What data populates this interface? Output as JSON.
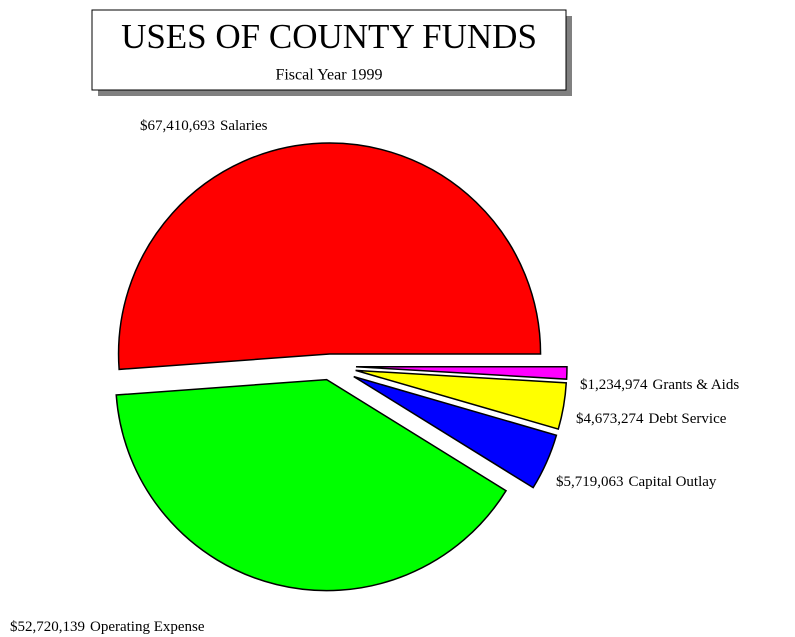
{
  "chart_data": {
    "type": "pie",
    "title": "USES OF COUNTY FUNDS",
    "subtitle": "Fiscal Year 1999",
    "categories": [
      "Salaries",
      "Operating Expense",
      "Capital Outlay",
      "Debt Service",
      "Grants & Aids"
    ],
    "values": [
      67410693,
      52720139,
      5719063,
      4673274,
      1234974
    ],
    "value_labels": [
      "$67,410,693",
      "$52,720,139",
      "$5,719,063",
      "$4,673,274",
      "$1,234,974"
    ],
    "colors": [
      "#ff0000",
      "#00ff00",
      "#0000ff",
      "#ffff00",
      "#ff00ff"
    ]
  }
}
